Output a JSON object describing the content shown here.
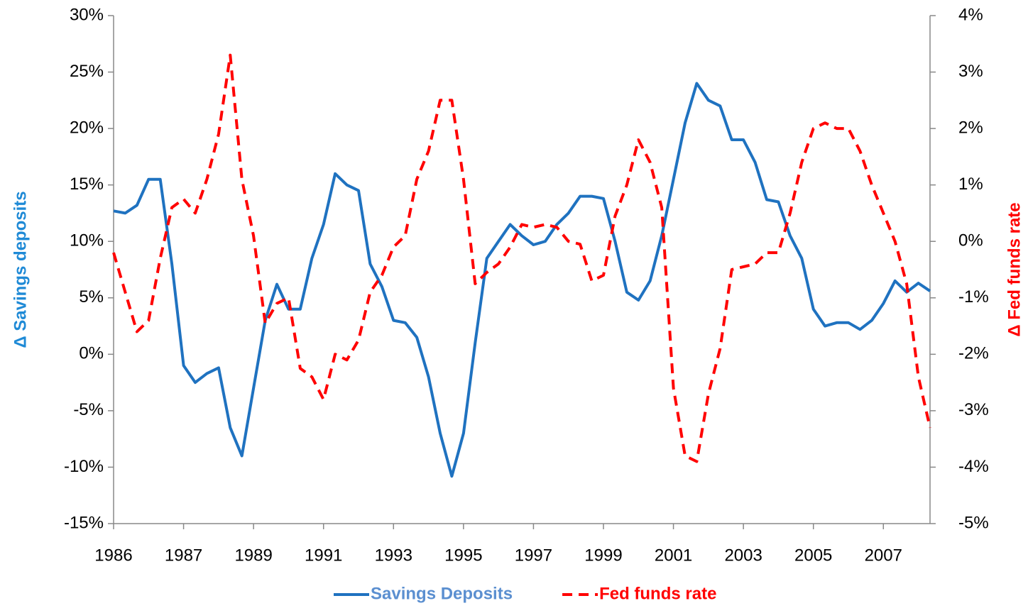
{
  "chart_data": {
    "type": "line",
    "categories": [
      "1986",
      null,
      null,
      null,
      null,
      null,
      "1987",
      null,
      null,
      null,
      null,
      null,
      "1989",
      null,
      null,
      null,
      null,
      null,
      "1991",
      null,
      null,
      null,
      null,
      null,
      "1993",
      null,
      null,
      null,
      null,
      null,
      "1995",
      null,
      null,
      null,
      null,
      null,
      "1997",
      null,
      null,
      null,
      null,
      null,
      "1999",
      null,
      null,
      null,
      null,
      null,
      "2001",
      null,
      null,
      null,
      null,
      null,
      "2003",
      null,
      null,
      null,
      null,
      null,
      "2005",
      null,
      null,
      null,
      null,
      null,
      "2007",
      null,
      null,
      null,
      null
    ],
    "ylabel": "Δ Savings deposits",
    "y2label": "Δ Fed funds rate",
    "ylim": [
      -15,
      30
    ],
    "yticks": [
      {
        "value": -15,
        "label": "-15%"
      },
      {
        "value": -10,
        "label": "-10%"
      },
      {
        "value": -5,
        "label": "-5%"
      },
      {
        "value": 0,
        "label": "0%"
      },
      {
        "value": 5,
        "label": "5%"
      },
      {
        "value": 10,
        "label": "10%"
      },
      {
        "value": 15,
        "label": "15%"
      },
      {
        "value": 20,
        "label": "20%"
      },
      {
        "value": 25,
        "label": "25%"
      },
      {
        "value": 30,
        "label": "30%"
      }
    ],
    "y2lim": [
      -5,
      4
    ],
    "y2ticks": [
      {
        "value": -5,
        "label": "-5%"
      },
      {
        "value": -4,
        "label": "-4%"
      },
      {
        "value": -3,
        "label": "-3%"
      },
      {
        "value": -2,
        "label": "-2%"
      },
      {
        "value": -1,
        "label": "-1%"
      },
      {
        "value": 0,
        "label": "0%"
      },
      {
        "value": 1,
        "label": "1%"
      },
      {
        "value": 2,
        "label": "2%"
      },
      {
        "value": 3,
        "label": "3%"
      },
      {
        "value": 4,
        "label": "4%"
      }
    ],
    "legend": "bottom",
    "series": [
      {
        "name": "Savings Deposits",
        "color": "#1f72c0",
        "dashed": false,
        "values": [
          12.7,
          12.5,
          13.2,
          15.5,
          15.5,
          8,
          -1,
          -2.5,
          -1.7,
          -1.2,
          -6.5,
          -9,
          -3,
          3,
          6.2,
          4,
          4,
          8.5,
          11.5,
          16,
          15,
          14.5,
          8,
          6,
          3,
          2.8,
          1.5,
          -2,
          -7,
          -10.8,
          -7,
          1,
          8.5,
          10,
          11.5,
          10.5,
          9.7,
          10,
          11.5,
          12.5,
          14,
          14,
          13.8,
          10,
          5.5,
          4.8,
          6.5,
          10.5,
          15.5,
          20.5,
          24,
          22.5,
          22,
          19,
          19,
          17,
          13.7,
          13.5,
          10.5,
          8.5,
          4,
          2.5,
          2.8,
          2.8,
          2.2,
          3,
          4.5,
          6.5,
          5.5,
          6.3,
          5.6
        ]
      },
      {
        "name": "Fed funds rate",
        "color": "#ff0000",
        "dashed": true,
        "axis": "y2",
        "values": [
          -0.2,
          -0.9,
          -1.6,
          -1.4,
          -0.3,
          0.6,
          0.75,
          0.5,
          1.1,
          1.9,
          3.3,
          1.1,
          0.1,
          -1.45,
          -1.1,
          -1.0,
          -2.25,
          -2.4,
          -2.8,
          -2.0,
          -2.1,
          -1.75,
          -0.9,
          -0.6,
          -0.1,
          0.1,
          1.1,
          1.6,
          2.5,
          2.5,
          1.1,
          -0.75,
          -0.55,
          -0.4,
          -0.1,
          0.3,
          0.25,
          0.3,
          0.25,
          0,
          -0.05,
          -0.7,
          -0.6,
          0.45,
          1,
          1.8,
          1.4,
          0.6,
          -2.6,
          -3.8,
          -3.9,
          -2.7,
          -1.9,
          -0.5,
          -0.45,
          -0.4,
          -0.2,
          -0.2,
          0.5,
          1.4,
          2.0,
          2.1,
          2.0,
          2.0,
          1.6,
          1,
          0.5,
          0,
          -0.75,
          -2.4,
          -3.3
        ]
      }
    ]
  }
}
